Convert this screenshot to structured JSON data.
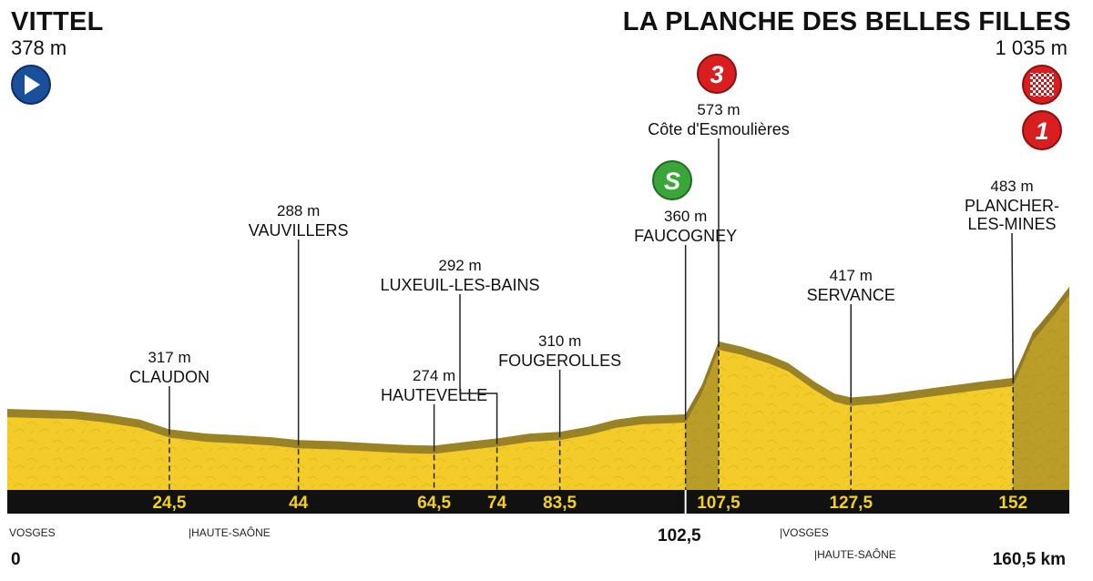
{
  "colors": {
    "terrain": "#f3cc2a",
    "terrain_dark": "#d4a818",
    "climb": "#8a7426",
    "axis_bar": "#111111",
    "km_label": "#f2d21b",
    "start_icon": "#1a4f9c",
    "sprint_icon": "#3aa63a",
    "kom_icon": "#d81e1e"
  },
  "header": {
    "start_name": "VITTEL",
    "start_altitude": "378 m",
    "finish_name": "LA PLANCHE DES BELLES FILLES",
    "finish_altitude": "1 035 m"
  },
  "icons": {
    "start": "start-arrow-icon",
    "finish": "checkered-flag-icon",
    "sprint": "intermediate-sprint-icon",
    "kom_cat3": "kom-category-3-icon",
    "kom_cat1": "kom-category-1-icon"
  },
  "icon_labels": {
    "sprint": "S",
    "kom_cat3": "3",
    "kom_cat1": "1"
  },
  "km_axis": {
    "start": "0",
    "mid": "102,5",
    "end": "160,5 km"
  },
  "departments": [
    {
      "label": "VOSGES",
      "km": 0
    },
    {
      "label": "|HAUTE-SAÔNE",
      "km": 44
    },
    {
      "label": "|VOSGES",
      "km": 127.5
    },
    {
      "label": "|HAUTE-SAÔNE",
      "km": 127.5
    }
  ],
  "chart_data": {
    "type": "area",
    "xlabel": "",
    "ylabel": "",
    "xlim": [
      0,
      160.5
    ],
    "x_unit": "km",
    "y_unit": "m",
    "profile": [
      [
        0,
        378
      ],
      [
        5,
        375
      ],
      [
        10,
        372
      ],
      [
        15,
        360
      ],
      [
        20,
        345
      ],
      [
        24.5,
        317
      ],
      [
        30,
        305
      ],
      [
        35,
        300
      ],
      [
        40,
        295
      ],
      [
        44,
        288
      ],
      [
        50,
        285
      ],
      [
        55,
        280
      ],
      [
        60,
        276
      ],
      [
        64.5,
        274
      ],
      [
        70,
        285
      ],
      [
        74,
        292
      ],
      [
        79,
        305
      ],
      [
        83.5,
        310
      ],
      [
        88,
        325
      ],
      [
        92,
        345
      ],
      [
        96,
        355
      ],
      [
        100,
        358
      ],
      [
        102.5,
        360
      ],
      [
        105,
        460
      ],
      [
        107.5,
        573
      ],
      [
        111,
        560
      ],
      [
        115,
        540
      ],
      [
        118,
        520
      ],
      [
        122,
        470
      ],
      [
        125,
        430
      ],
      [
        127.5,
        417
      ],
      [
        132,
        425
      ],
      [
        137,
        440
      ],
      [
        142,
        455
      ],
      [
        147,
        470
      ],
      [
        152,
        483
      ],
      [
        155,
        650
      ],
      [
        158,
        850
      ],
      [
        160.5,
        1035
      ]
    ],
    "markers": [
      {
        "km": 24.5,
        "km_label": "24,5",
        "altitude": "317 m",
        "name": "CLAUDON"
      },
      {
        "km": 44,
        "km_label": "44",
        "altitude": "288 m",
        "name": "VAUVILLERS"
      },
      {
        "km": 64.5,
        "km_label": "64,5",
        "altitude": "274 m",
        "name": "HAUTEVELLE"
      },
      {
        "km": 74,
        "km_label": "74",
        "altitude": "292 m",
        "name": "LUXEUIL-LES-BAINS"
      },
      {
        "km": 83.5,
        "km_label": "83,5",
        "altitude": "310 m",
        "name": "FOUGEROLLES"
      },
      {
        "km": 102.5,
        "km_label": "",
        "altitude": "360 m",
        "name": "FAUCOGNEY"
      },
      {
        "km": 107.5,
        "km_label": "107,5",
        "altitude": "573 m",
        "name": "Côte d'Esmoulières"
      },
      {
        "km": 127.5,
        "km_label": "127,5",
        "altitude": "417 m",
        "name": "SERVANCE"
      },
      {
        "km": 152,
        "km_label": "152",
        "altitude": "483 m",
        "name": "PLANCHER-LES-MINES"
      }
    ],
    "climbs": [
      {
        "name": "Côte d'Esmoulières",
        "category": "3",
        "from_km": 102.5,
        "to_km": 107.5
      },
      {
        "name": "La Planche des Belles Filles",
        "category": "1",
        "from_km": 152,
        "to_km": 160.5
      }
    ],
    "sprint_km": 102.5
  }
}
